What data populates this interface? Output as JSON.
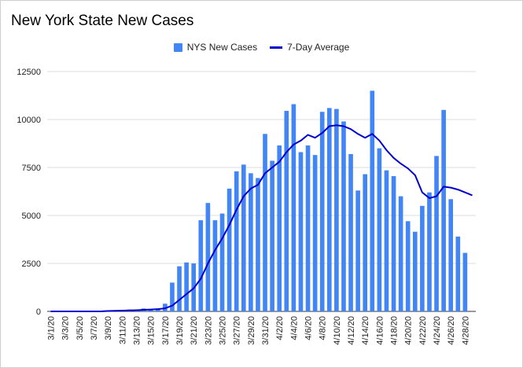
{
  "chart_data": {
    "type": "bar",
    "title": "New York State New Cases",
    "legend_position": "top-center",
    "colors": {
      "bars": "#4285f4",
      "line": "#0000cc",
      "grid": "#dddddd"
    },
    "grid": true,
    "ylim": [
      0,
      12500
    ],
    "y_ticks": [
      0,
      2500,
      5000,
      7500,
      10000,
      12500
    ],
    "y_tick_labels": [
      "0",
      "2500",
      "5000",
      "7500",
      "10000",
      "12500"
    ],
    "x_tick_labels": [
      "3/1/20",
      "3/3/20",
      "3/5/20",
      "3/7/20",
      "3/9/20",
      "3/11/20",
      "3/13/20",
      "3/15/20",
      "3/17/20",
      "3/19/20",
      "3/21/20",
      "3/23/20",
      "3/25/20",
      "3/27/20",
      "3/29/20",
      "3/31/20",
      "4/2/20",
      "4/4/20",
      "4/6/20",
      "4/8/20",
      "4/10/20",
      "4/12/20",
      "4/14/20",
      "4/16/20",
      "4/18/20",
      "4/20/20",
      "4/22/20",
      "4/24/20",
      "4/26/20",
      "4/28/20"
    ],
    "categories": [
      "3/1/20",
      "3/2/20",
      "3/3/20",
      "3/4/20",
      "3/5/20",
      "3/6/20",
      "3/7/20",
      "3/8/20",
      "3/9/20",
      "3/10/20",
      "3/11/20",
      "3/12/20",
      "3/13/20",
      "3/14/20",
      "3/15/20",
      "3/16/20",
      "3/17/20",
      "3/18/20",
      "3/19/20",
      "3/20/20",
      "3/21/20",
      "3/22/20",
      "3/23/20",
      "3/24/20",
      "3/25/20",
      "3/26/20",
      "3/27/20",
      "3/28/20",
      "3/29/20",
      "3/30/20",
      "3/31/20",
      "4/1/20",
      "4/2/20",
      "4/3/20",
      "4/4/20",
      "4/5/20",
      "4/6/20",
      "4/7/20",
      "4/8/20",
      "4/9/20",
      "4/10/20",
      "4/11/20",
      "4/12/20",
      "4/13/20",
      "4/14/20",
      "4/15/20",
      "4/16/20",
      "4/17/20",
      "4/18/20",
      "4/19/20",
      "4/20/20",
      "4/21/20",
      "4/22/20",
      "4/23/20",
      "4/24/20",
      "4/25/20",
      "4/26/20",
      "4/27/20",
      "4/28/20",
      "4/29/20"
    ],
    "series": [
      {
        "name": "NYS New Cases",
        "type": "bar",
        "values": [
          0,
          0,
          0,
          0,
          0,
          0,
          10,
          0,
          50,
          60,
          80,
          100,
          90,
          150,
          100,
          150,
          400,
          1500,
          2350,
          2550,
          2500,
          4750,
          5650,
          4750,
          5100,
          6400,
          7300,
          7650,
          7200,
          6950,
          9250,
          7850,
          8650,
          10450,
          10800,
          8300,
          8650,
          8150,
          10400,
          10600,
          10550,
          9900,
          8200,
          6300,
          7150,
          11500,
          8500,
          7350,
          7050,
          6000,
          4700,
          4150,
          5500,
          6200,
          8100,
          10500,
          5850,
          3900,
          3050,
          0
        ]
      },
      {
        "name": "7-Day Average",
        "type": "line",
        "values": [
          0,
          0,
          0,
          0,
          0,
          0,
          0,
          0,
          20,
          30,
          40,
          50,
          60,
          80,
          100,
          120,
          160,
          300,
          600,
          900,
          1200,
          1700,
          2500,
          3200,
          3800,
          4500,
          5300,
          6000,
          6400,
          6600,
          7200,
          7500,
          7800,
          8300,
          8700,
          8900,
          9200,
          9050,
          9300,
          9650,
          9700,
          9650,
          9500,
          9250,
          9050,
          9250,
          8900,
          8400,
          8000,
          7700,
          7450,
          7100,
          6200,
          5900,
          6000,
          6500,
          6450,
          6350,
          6200,
          6050
        ]
      }
    ]
  }
}
